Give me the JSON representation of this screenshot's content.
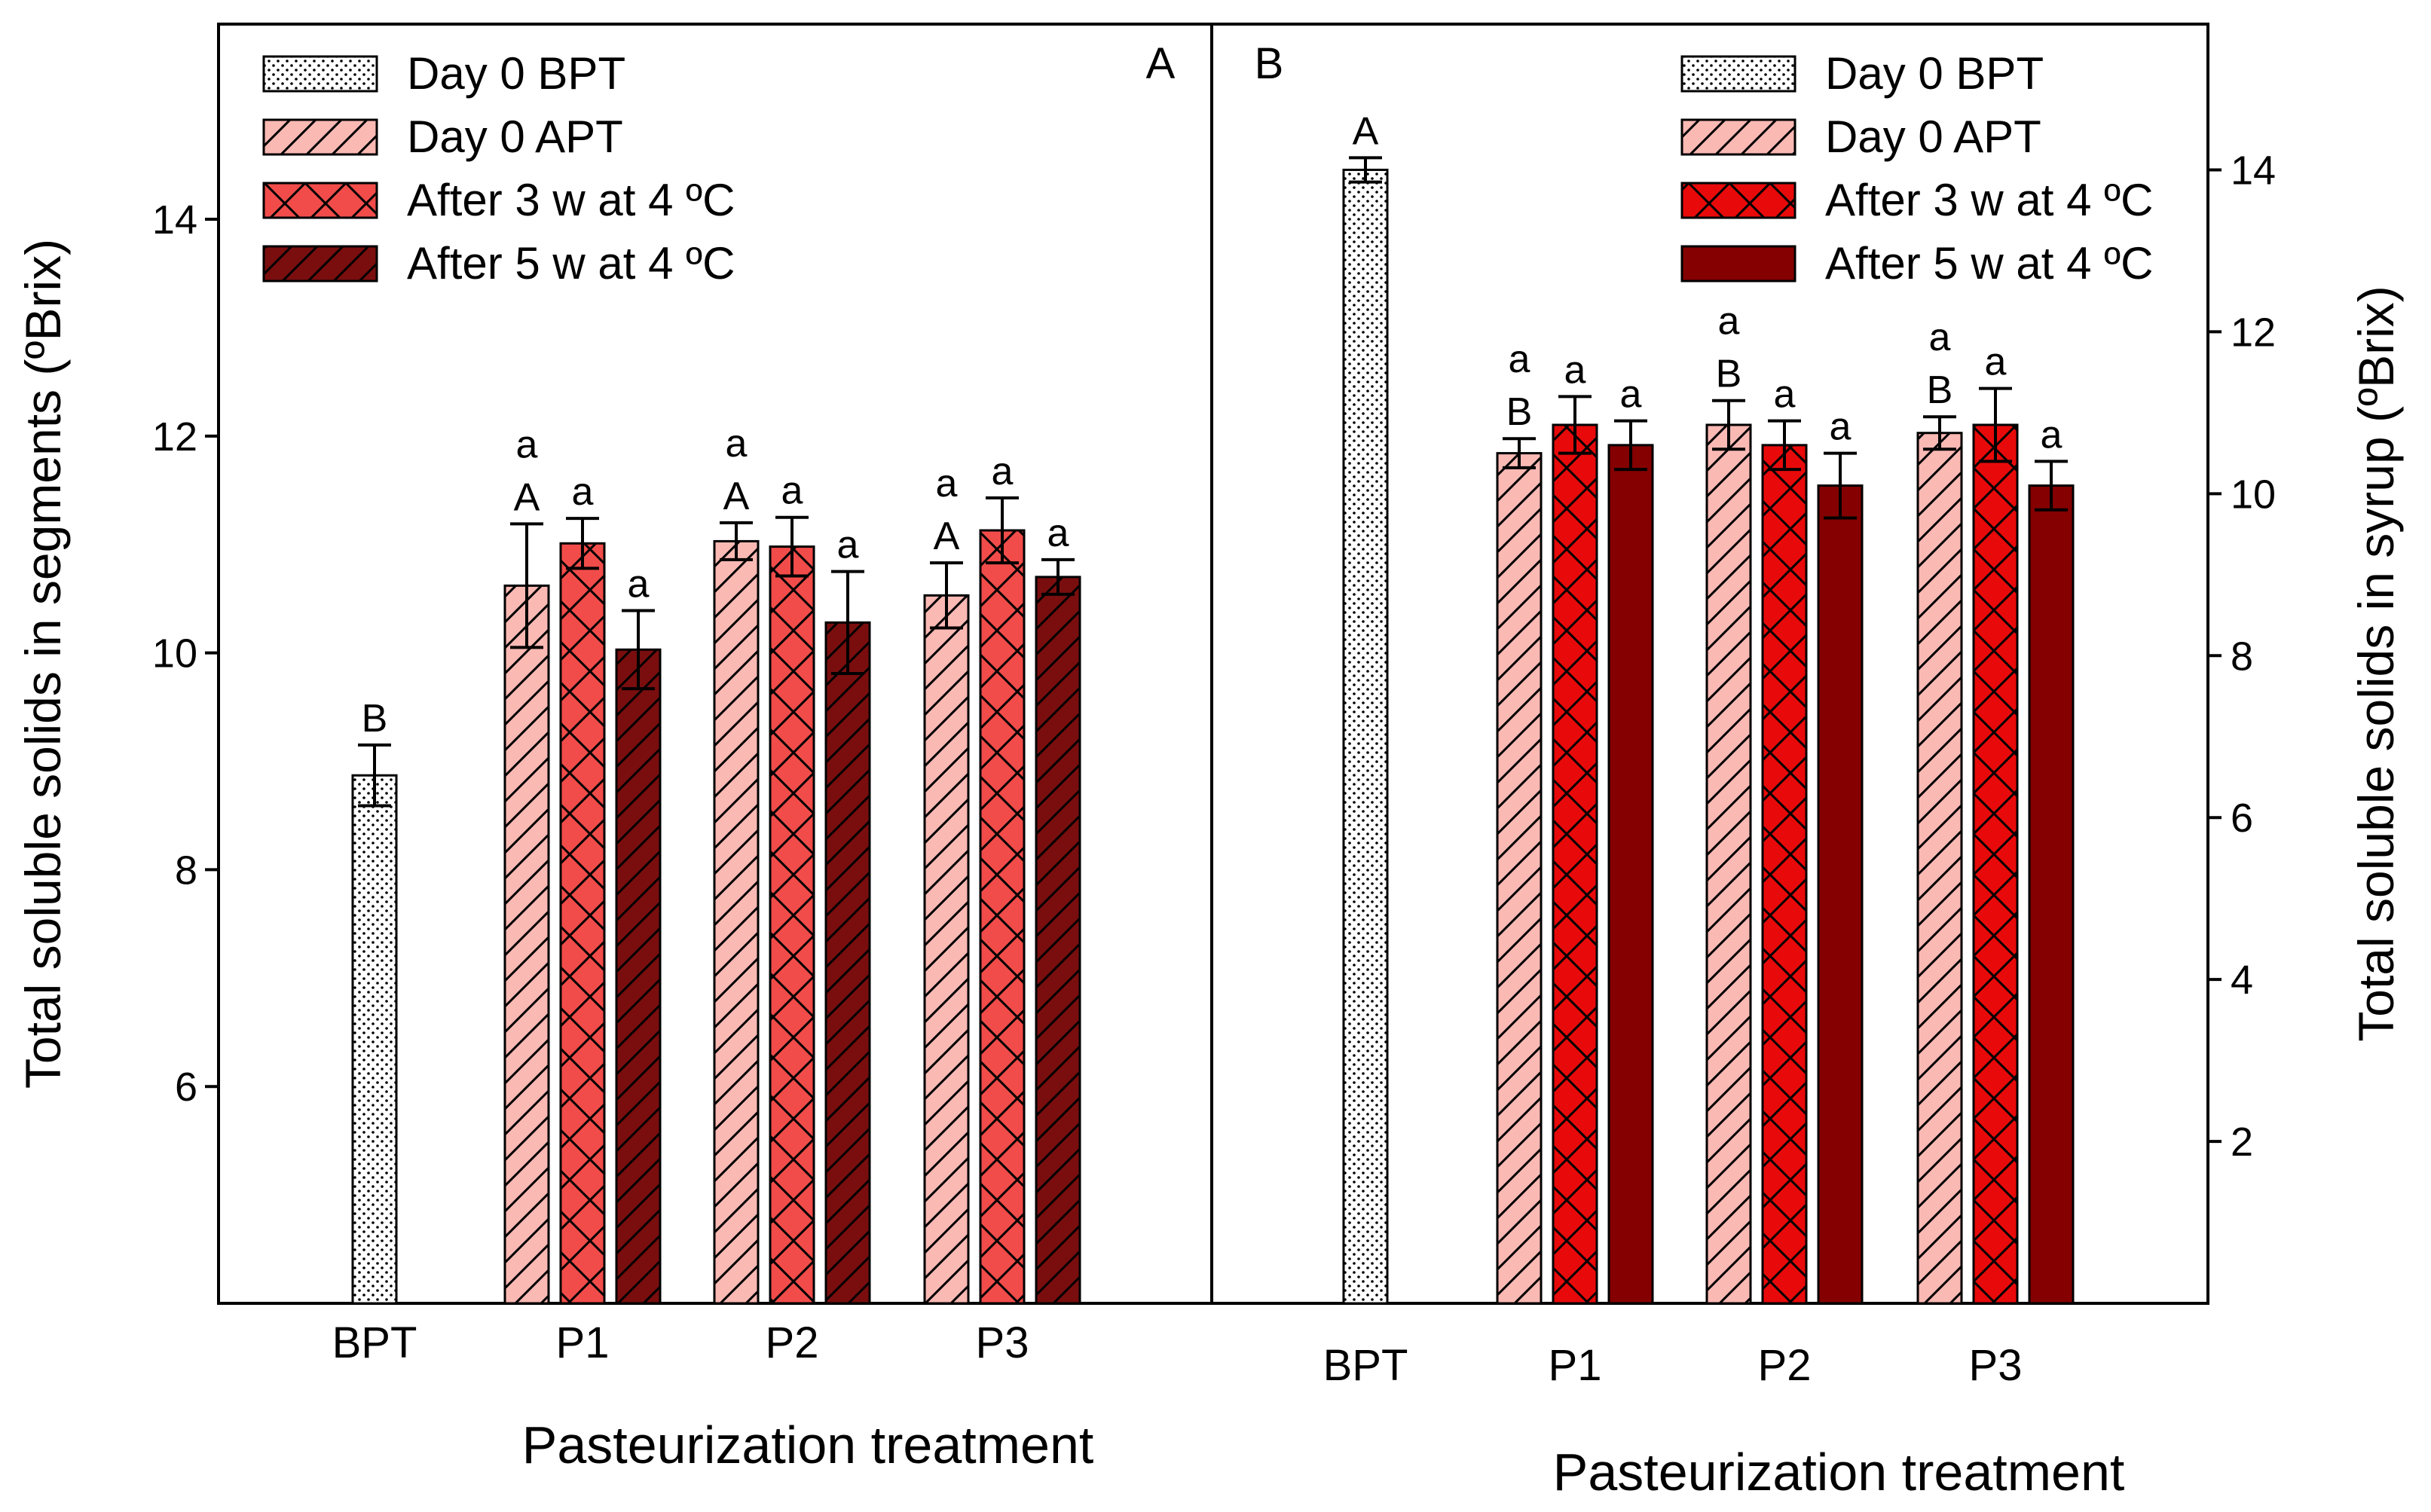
{
  "figure": {
    "xlabel": "Pasteurization treatment",
    "legend": [
      {
        "label": "Day 0 BPT",
        "color": "#ffffff",
        "pattern": "dots"
      },
      {
        "label": "Day 0 APT",
        "color": "#fbb9b4",
        "pattern": "hatch"
      },
      {
        "label": "After 3 w at 4 ºC",
        "color": "#f14c4a",
        "pattern": "cross"
      },
      {
        "label": "After 5 w at 4 ºC",
        "color": "#7a0e0e",
        "pattern": "hatch"
      }
    ]
  },
  "chart_data": [
    {
      "type": "bar",
      "panel_label": "A",
      "ylabel": "Total soluble solids in segments (ºBrix)",
      "xlabel": "Pasteurization treatment",
      "ylim": [
        4,
        15.8
      ],
      "yticks": [
        6,
        8,
        10,
        12,
        14
      ],
      "categories": [
        "BPT",
        "P1",
        "P2",
        "P3"
      ],
      "series": [
        {
          "name": "Day 0 BPT",
          "values": [
            8.87,
            null,
            null,
            null
          ],
          "errors": [
            0.28,
            null,
            null,
            null
          ],
          "letters": [
            "B",
            "",
            "",
            ""
          ]
        },
        {
          "name": "Day 0 APT",
          "values": [
            null,
            10.62,
            11.03,
            10.53
          ],
          "errors": [
            null,
            0.57,
            0.17,
            0.3
          ],
          "letters": [
            "",
            "a\nA",
            "a\nA",
            "a\nA"
          ]
        },
        {
          "name": "After 3 w at 4 ºC",
          "values": [
            null,
            11.01,
            10.98,
            11.13
          ],
          "errors": [
            null,
            0.23,
            0.27,
            0.3
          ],
          "letters": [
            "",
            "a",
            "a",
            "a"
          ]
        },
        {
          "name": "After 5 w at 4 ºC",
          "values": [
            null,
            10.03,
            10.28,
            10.7
          ],
          "errors": [
            null,
            0.36,
            0.47,
            0.16
          ],
          "letters": [
            "",
            "a",
            "a",
            "a"
          ]
        }
      ]
    },
    {
      "type": "bar",
      "panel_label": "B",
      "ylabel": "Total soluble solids in syrup (ºBrix)",
      "xlabel": "Pasteurization treatment",
      "ylim": [
        0,
        15.8
      ],
      "yticks": [
        2,
        4,
        6,
        8,
        10,
        12,
        14
      ],
      "categories": [
        "BPT",
        "P1",
        "P2",
        "P3"
      ],
      "series": [
        {
          "name": "Day 0 BPT",
          "values": [
            14.0,
            null,
            null,
            null
          ],
          "errors": [
            0.15,
            null,
            null,
            null
          ],
          "letters": [
            "A",
            "",
            "",
            ""
          ]
        },
        {
          "name": "Day 0 APT",
          "values": [
            null,
            10.5,
            10.85,
            10.75
          ],
          "errors": [
            null,
            0.18,
            0.3,
            0.2
          ],
          "letters": [
            "",
            "a\nB",
            "a\nB",
            "a\nB"
          ]
        },
        {
          "name": "After 3 w at 4 ºC",
          "values": [
            null,
            10.85,
            10.6,
            10.85
          ],
          "errors": [
            null,
            0.35,
            0.3,
            0.45
          ],
          "letters": [
            "",
            "a",
            "a",
            "a"
          ]
        },
        {
          "name": "After 5 w at 4 ºC",
          "values": [
            null,
            10.6,
            10.1,
            10.1
          ],
          "errors": [
            null,
            0.3,
            0.4,
            0.3
          ],
          "letters": [
            "",
            "a",
            "a",
            "a"
          ]
        }
      ]
    }
  ]
}
